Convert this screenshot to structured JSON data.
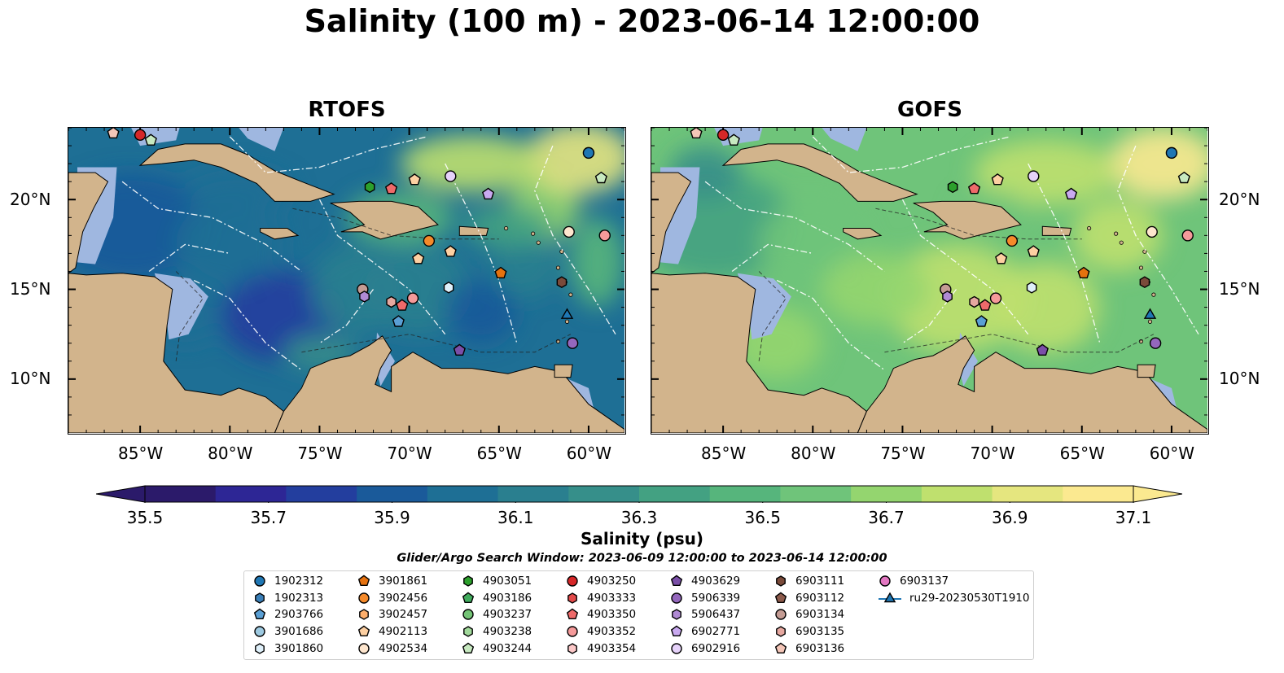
{
  "title": "Salinity (100 m) - 2023-06-14 12:00:00",
  "panels": [
    {
      "title": "RTOFS"
    },
    {
      "title": "GOFS"
    }
  ],
  "map_extent": {
    "lon_min": -89,
    "lon_max": -58,
    "lat_min": 7,
    "lat_max": 24
  },
  "lon_ticks": [
    "85°W",
    "80°W",
    "75°W",
    "70°W",
    "65°W",
    "60°W"
  ],
  "lat_ticks": [
    "20°N",
    "15°N",
    "10°N"
  ],
  "colorbar": {
    "label": "Salinity (psu)",
    "ticks": [
      "35.5",
      "35.7",
      "35.9",
      "36.1",
      "36.3",
      "36.5",
      "36.7",
      "36.9",
      "37.1"
    ],
    "range": [
      35.5,
      37.1
    ],
    "colors": [
      "#2b1a6a",
      "#2d2695",
      "#233e9e",
      "#1a5a9a",
      "#1e6f95",
      "#2a7f8f",
      "#368f8a",
      "#43a182",
      "#56b57c",
      "#6fc47a",
      "#94d56f",
      "#bfe06e",
      "#e5e67f",
      "#fbe990"
    ],
    "extend_low": "#2b1a6a",
    "extend_high": "#fbe990"
  },
  "search_window": "Glider/Argo Search Window: 2023-06-09 12:00:00 to 2023-06-14 12:00:00",
  "legend": {
    "items": [
      {
        "label": "1902312",
        "marker": "circle",
        "color": "#1f77b4"
      },
      {
        "label": "1902313",
        "marker": "hexagon",
        "color": "#3a7fb8"
      },
      {
        "label": "2903766",
        "marker": "pentagon",
        "color": "#5a9fd4"
      },
      {
        "label": "3901686",
        "marker": "circle",
        "color": "#9ecae1"
      },
      {
        "label": "3901860",
        "marker": "hexagon",
        "color": "#dff0fa"
      },
      {
        "label": "3901861",
        "marker": "pentagon",
        "color": "#e6720f"
      },
      {
        "label": "3902456",
        "marker": "circle",
        "color": "#f58a2a"
      },
      {
        "label": "3902457",
        "marker": "hexagon",
        "color": "#fdae6b"
      },
      {
        "label": "4902113",
        "marker": "pentagon",
        "color": "#fdd0a2"
      },
      {
        "label": "4902534",
        "marker": "circle",
        "color": "#fee6ce"
      },
      {
        "label": "4903051",
        "marker": "hexagon",
        "color": "#2ca02c"
      },
      {
        "label": "4903186",
        "marker": "pentagon",
        "color": "#41ab5d"
      },
      {
        "label": "4903237",
        "marker": "circle",
        "color": "#74c476"
      },
      {
        "label": "4903238",
        "marker": "hexagon",
        "color": "#a1d99b"
      },
      {
        "label": "4903244",
        "marker": "pentagon",
        "color": "#c7e9c0"
      },
      {
        "label": "4903250",
        "marker": "circle",
        "color": "#d62728"
      },
      {
        "label": "4903333",
        "marker": "hexagon",
        "color": "#e34a4a"
      },
      {
        "label": "4903350",
        "marker": "pentagon",
        "color": "#ef6a6a"
      },
      {
        "label": "4903352",
        "marker": "circle",
        "color": "#f59a9a"
      },
      {
        "label": "4903354",
        "marker": "hexagon",
        "color": "#fcc8c8"
      },
      {
        "label": "4903629",
        "marker": "pentagon",
        "color": "#7b4fa8"
      },
      {
        "label": "5906339",
        "marker": "circle",
        "color": "#9467bd"
      },
      {
        "label": "5906437",
        "marker": "hexagon",
        "color": "#b08ad4"
      },
      {
        "label": "6902771",
        "marker": "pentagon",
        "color": "#c9a9f0"
      },
      {
        "label": "6902916",
        "marker": "circle",
        "color": "#e6d2fa"
      },
      {
        "label": "6903111",
        "marker": "hexagon",
        "color": "#7a4a3a"
      },
      {
        "label": "6903112",
        "marker": "pentagon",
        "color": "#8c5a4b"
      },
      {
        "label": "6903134",
        "marker": "circle",
        "color": "#c49c94"
      },
      {
        "label": "6903135",
        "marker": "hexagon",
        "color": "#e6a8a0"
      },
      {
        "label": "6903136",
        "marker": "pentagon",
        "color": "#f4c6b8"
      },
      {
        "label": "6903137",
        "marker": "circle",
        "color": "#e377c2"
      },
      {
        "label": "ru29-20230530T1910",
        "marker": "triangle-line",
        "color": "#1f77b4"
      }
    ]
  },
  "floats": [
    {
      "label": "1902312",
      "lon": -60.0,
      "lat": 22.6
    },
    {
      "label": "4903250",
      "lon": -85.0,
      "lat": 23.6
    },
    {
      "label": "4903244",
      "lon": -84.4,
      "lat": 23.3
    },
    {
      "label": "6903136",
      "lon": -86.5,
      "lat": 23.7
    },
    {
      "label": "4903244",
      "lon": -59.3,
      "lat": 21.2
    },
    {
      "label": "4902113",
      "lon": -69.7,
      "lat": 21.1
    },
    {
      "label": "6902916",
      "lon": -67.7,
      "lat": 21.3
    },
    {
      "label": "4903051",
      "lon": -72.2,
      "lat": 20.7
    },
    {
      "label": "4903350",
      "lon": -71.0,
      "lat": 20.6
    },
    {
      "label": "6902771",
      "lon": -65.6,
      "lat": 20.3
    },
    {
      "label": "4902534",
      "lon": -61.1,
      "lat": 18.2
    },
    {
      "label": "4903352",
      "lon": -59.1,
      "lat": 18.0
    },
    {
      "label": "3902456",
      "lon": -68.9,
      "lat": 17.7
    },
    {
      "label": "4902113",
      "lon": -67.7,
      "lat": 17.1
    },
    {
      "label": "4902113",
      "lon": -69.5,
      "lat": 16.7
    },
    {
      "label": "3901861",
      "lon": -64.9,
      "lat": 15.9
    },
    {
      "label": "6903111",
      "lon": -61.5,
      "lat": 15.4
    },
    {
      "label": "6903134",
      "lon": -72.6,
      "lat": 15.0
    },
    {
      "label": "3901860",
      "lon": -67.8,
      "lat": 15.1
    },
    {
      "label": "5906437",
      "lon": -72.5,
      "lat": 14.6
    },
    {
      "label": "4903352",
      "lon": -69.8,
      "lat": 14.5
    },
    {
      "label": "6903135",
      "lon": -71.0,
      "lat": 14.3
    },
    {
      "label": "4903350",
      "lon": -70.4,
      "lat": 14.1
    },
    {
      "label": "ru29-20230530T1910",
      "lon": -61.2,
      "lat": 13.6
    },
    {
      "label": "2903766",
      "lon": -70.6,
      "lat": 13.2
    },
    {
      "label": "4903629",
      "lon": -67.2,
      "lat": 11.6
    },
    {
      "label": "5906339",
      "lon": -60.9,
      "lat": 12.0
    }
  ]
}
